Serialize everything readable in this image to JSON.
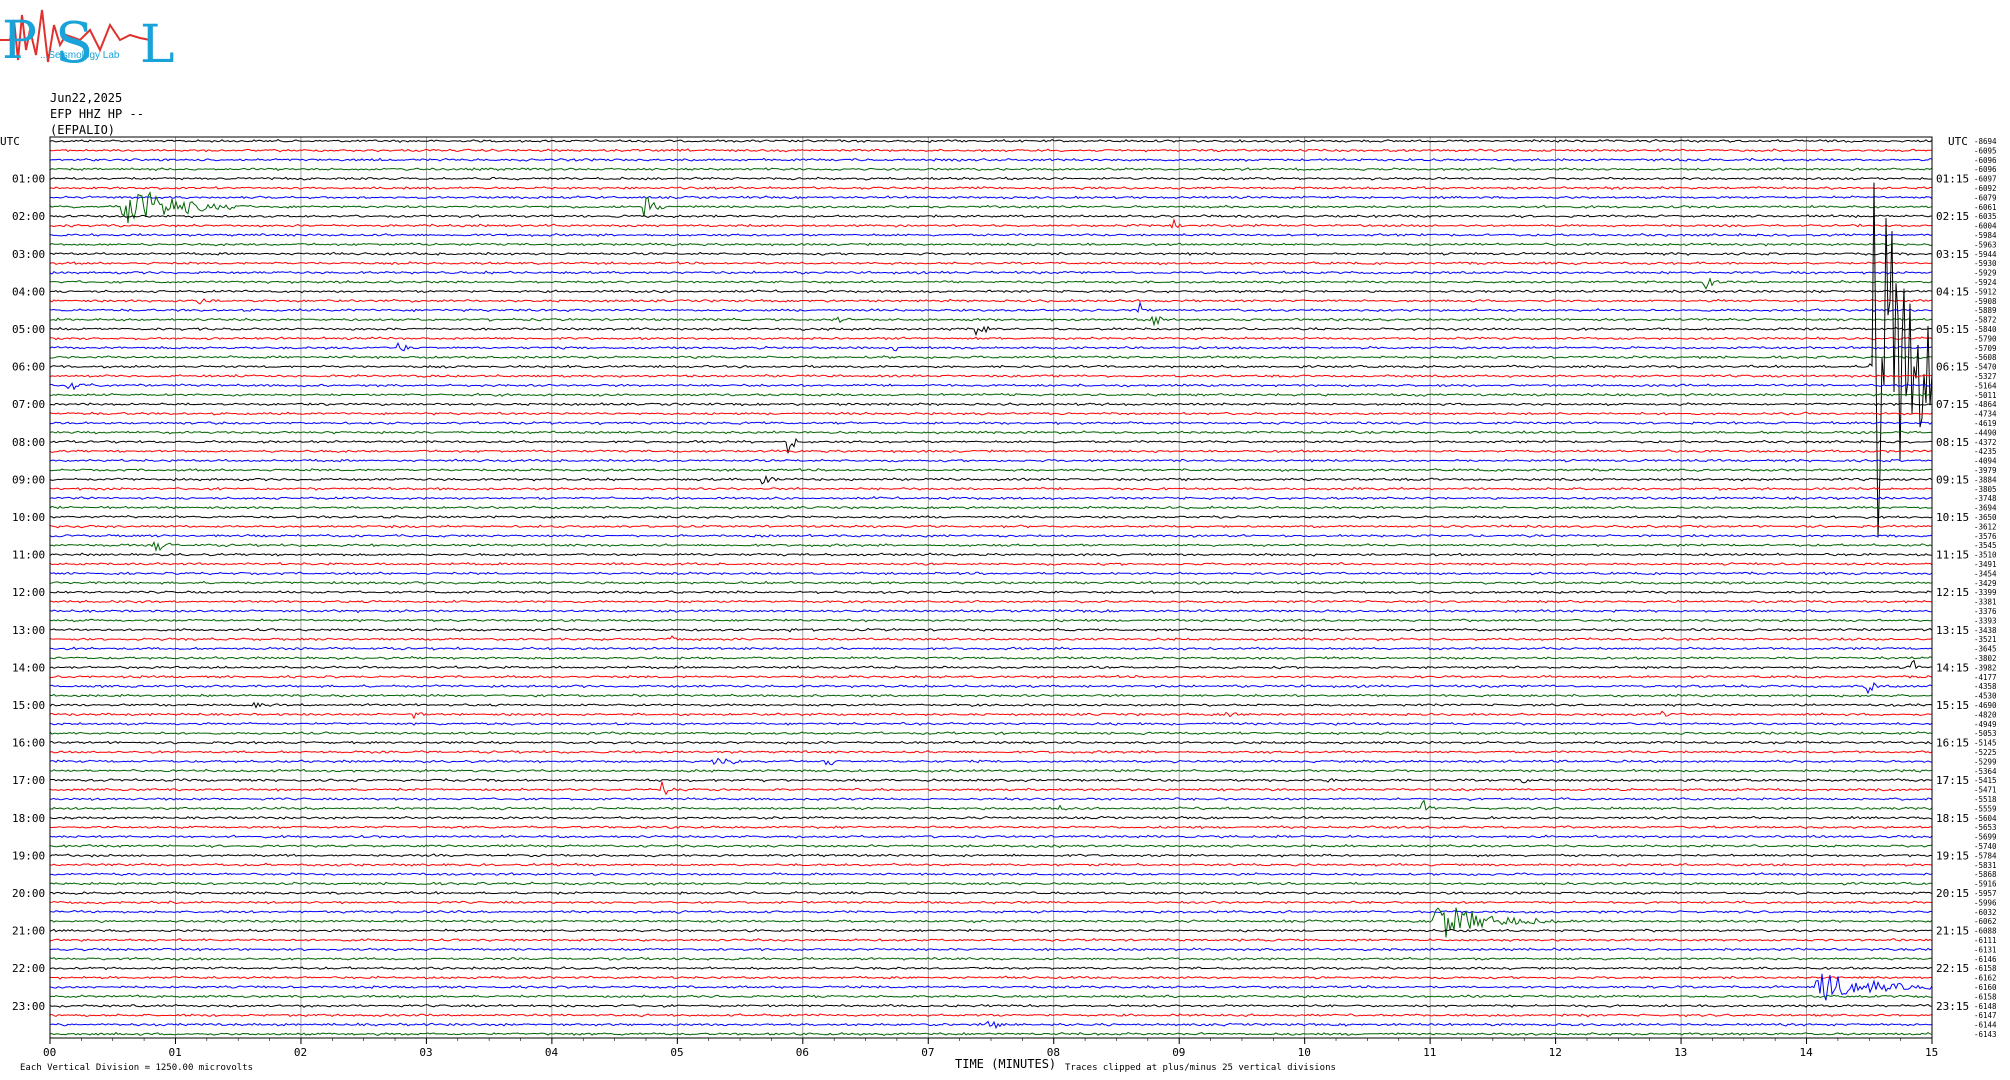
{
  "logo": {
    "letters": [
      "P",
      "S",
      "L"
    ],
    "text": "...Seismology Lab",
    "color": "#1aa3d9"
  },
  "header": {
    "date": "Jun22,2025",
    "channel": "EFP HHZ HP --",
    "station": "(EFPALIO)"
  },
  "footer": {
    "scale_note": "Each Vertical Division = 1250.00 microvolts",
    "clip_note": "Traces clipped at plus/minus 25 vertical divisions"
  },
  "colors": {
    "trace_cycle": [
      "#000000",
      "#ff0000",
      "#0000ff",
      "#006400"
    ],
    "grid": "#888888"
  },
  "chart_data": {
    "type": "line",
    "title": "",
    "xlabel": "TIME (MINUTES)",
    "ylabel_left": "UTC",
    "ylabel_right": "UTC",
    "xlim": [
      0,
      15
    ],
    "x_ticks": [
      "00",
      "01",
      "02",
      "03",
      "04",
      "05",
      "06",
      "07",
      "08",
      "09",
      "10",
      "11",
      "12",
      "13",
      "14",
      "15"
    ],
    "left_hour_labels": [
      "01:00",
      "02:00",
      "03:00",
      "04:00",
      "05:00",
      "06:00",
      "07:00",
      "08:00",
      "09:00",
      "10:00",
      "11:00",
      "12:00",
      "13:00",
      "14:00",
      "15:00",
      "16:00",
      "17:00",
      "18:00",
      "19:00",
      "20:00",
      "21:00",
      "22:00",
      "23:00"
    ],
    "right_hour_labels": [
      "01:15",
      "02:15",
      "03:15",
      "04:15",
      "05:15",
      "06:15",
      "07:15",
      "08:15",
      "09:15",
      "10:15",
      "11:15",
      "12:15",
      "13:15",
      "14:15",
      "15:15",
      "16:15",
      "17:15",
      "18:15",
      "19:15",
      "20:15",
      "21:15",
      "22:15",
      "23:15"
    ],
    "traces_per_hour": 4,
    "trace_count": 96,
    "trace_offsets": [
      -8694,
      -6095,
      -6096,
      -6096,
      -6097,
      -6092,
      -6079,
      -6061,
      -6035,
      -6004,
      -5984,
      -5963,
      -5944,
      -5930,
      -5929,
      -5924,
      -5912,
      -5908,
      -5889,
      -5872,
      -5840,
      -5790,
      -5709,
      -5608,
      -5470,
      -5327,
      -5164,
      -5011,
      -4864,
      -4734,
      -4619,
      -4490,
      -4372,
      -4235,
      -4094,
      -3979,
      -3884,
      -3805,
      -3748,
      -3694,
      -3650,
      -3612,
      -3576,
      -3545,
      -3510,
      -3491,
      -3454,
      -3429,
      -3399,
      -3381,
      -3376,
      -3393,
      -3438,
      -3521,
      -3645,
      -3802,
      -3982,
      -4177,
      -4358,
      -4530,
      -4690,
      -4820,
      -4949,
      -5053,
      -5145,
      -5225,
      -5299,
      -5364,
      -5415,
      -5471,
      -5518,
      -5559,
      -5604,
      -5653,
      -5699,
      -5740,
      -5784,
      -5831,
      -5868,
      -5916,
      -5957,
      -5996,
      -6032,
      -6062,
      -6088,
      -6111,
      -6131,
      -6146,
      -6158,
      -6162,
      -6160,
      -6158,
      -6148,
      -6147,
      -6144,
      -6143
    ],
    "events": [
      {
        "trace": 7,
        "minute": 0.6,
        "amp": 6,
        "dur": 1.0
      },
      {
        "trace": 7,
        "minute": 4.75,
        "amp": 3,
        "dur": 0.2
      },
      {
        "trace": 9,
        "minute": 8.95,
        "amp": 1.5,
        "dur": 0.12
      },
      {
        "trace": 15,
        "minute": 13.2,
        "amp": 2,
        "dur": 0.15
      },
      {
        "trace": 17,
        "minute": 1.2,
        "amp": 2,
        "dur": 0.12
      },
      {
        "trace": 18,
        "minute": 8.7,
        "amp": 1.5,
        "dur": 0.12
      },
      {
        "trace": 19,
        "minute": 8.8,
        "amp": 2,
        "dur": 0.15
      },
      {
        "trace": 19,
        "minute": 6.3,
        "amp": 0.8,
        "dur": 0.1
      },
      {
        "trace": 20,
        "minute": 7.4,
        "amp": 1.5,
        "dur": 0.2
      },
      {
        "trace": 22,
        "minute": 2.8,
        "amp": 1.5,
        "dur": 0.15
      },
      {
        "trace": 22,
        "minute": 6.75,
        "amp": 0.6,
        "dur": 0.05
      },
      {
        "trace": 24,
        "minute": 14.5,
        "amp": 1.5,
        "dur": 0.1
      },
      {
        "trace": 26,
        "minute": 0.15,
        "amp": 1,
        "dur": 0.3
      },
      {
        "trace": 32,
        "minute": 5.9,
        "amp": 3,
        "dur": 0.1
      },
      {
        "trace": 36,
        "minute": 5.7,
        "amp": 2,
        "dur": 0.15
      },
      {
        "trace": 43,
        "minute": 0.85,
        "amp": 1.5,
        "dur": 0.2
      },
      {
        "trace": 53,
        "minute": 4.95,
        "amp": 1.5,
        "dur": 0.1
      },
      {
        "trace": 52,
        "minute": 5.9,
        "amp": 0.6,
        "dur": 0.1
      },
      {
        "trace": 56,
        "minute": 14.85,
        "amp": 2,
        "dur": 0.1
      },
      {
        "trace": 58,
        "minute": 14.5,
        "amp": 2,
        "dur": 0.1
      },
      {
        "trace": 60,
        "minute": 1.65,
        "amp": 0.7,
        "dur": 0.1
      },
      {
        "trace": 61,
        "minute": 2.9,
        "amp": 1.2,
        "dur": 0.15
      },
      {
        "trace": 61,
        "minute": 9.4,
        "amp": 1.2,
        "dur": 0.15
      },
      {
        "trace": 61,
        "minute": 12.85,
        "amp": 1.2,
        "dur": 0.2
      },
      {
        "trace": 66,
        "minute": 5.3,
        "amp": 1,
        "dur": 0.4
      },
      {
        "trace": 66,
        "minute": 6.2,
        "amp": 2,
        "dur": 0.1
      },
      {
        "trace": 68,
        "minute": 10.2,
        "amp": 0.8,
        "dur": 0.1
      },
      {
        "trace": 68,
        "minute": 11.75,
        "amp": 0.8,
        "dur": 0.15
      },
      {
        "trace": 69,
        "minute": 4.9,
        "amp": 2.5,
        "dur": 0.1
      },
      {
        "trace": 71,
        "minute": 8.05,
        "amp": 1,
        "dur": 0.1
      },
      {
        "trace": 71,
        "minute": 10.95,
        "amp": 2.5,
        "dur": 0.1
      },
      {
        "trace": 83,
        "minute": 11.05,
        "amp": 5,
        "dur": 1.0
      },
      {
        "trace": 90,
        "minute": 14.1,
        "amp": 4,
        "dur": 1.0
      },
      {
        "trace": 94,
        "minute": 7.5,
        "amp": 1.2,
        "dur": 0.3
      }
    ],
    "big_event": {
      "trace": 24,
      "minute": 14.55,
      "amp": 45,
      "dur": 1.2
    }
  }
}
